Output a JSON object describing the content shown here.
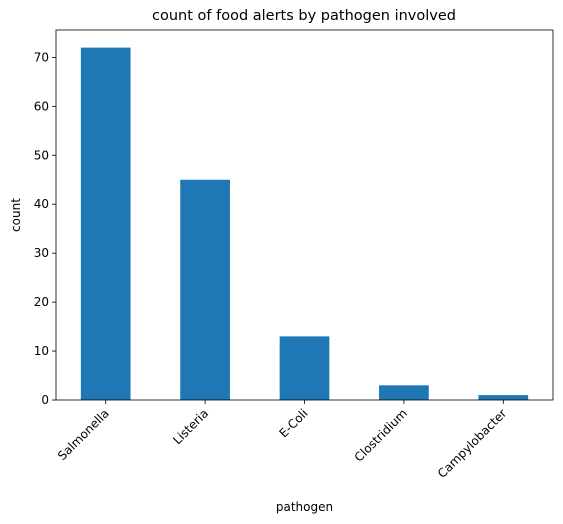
{
  "chart_data": {
    "type": "bar",
    "title": "count of food alerts by pathogen involved",
    "xlabel": "pathogen",
    "ylabel": "count",
    "categories": [
      "Salmonella",
      "Listeria",
      "E-Coli",
      "Clostridium",
      "Campylobacter"
    ],
    "values": [
      72,
      45,
      13,
      3,
      1
    ],
    "ylim": [
      0,
      75.6
    ],
    "yticks": [
      0,
      10,
      20,
      30,
      40,
      50,
      60,
      70
    ],
    "x_tick_rotation_deg": 45,
    "grid": false,
    "legend": "none",
    "bar_color": "#1f77b4"
  }
}
